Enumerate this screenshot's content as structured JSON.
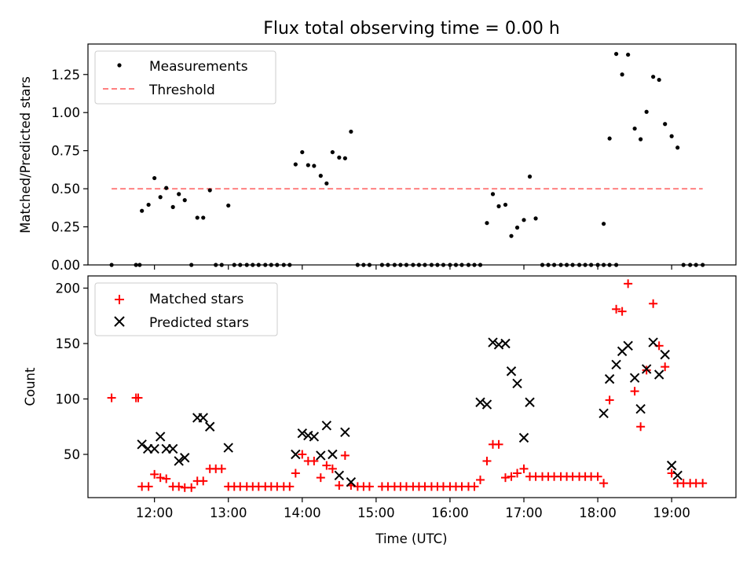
{
  "figure_title": "Flux total observing time = 0.00 h",
  "chart_data": [
    {
      "type": "scatter",
      "panel": "top",
      "ylabel": "Matched/Predicted stars",
      "xlim": [
        11.1,
        19.87
      ],
      "ylim": [
        0,
        1.45
      ],
      "yticks": [
        0,
        0.25,
        0.5,
        0.75,
        1.0,
        1.25
      ],
      "ytick_labels": [
        "0.00",
        "0.25",
        "0.50",
        "0.75",
        "1.00",
        "1.25"
      ],
      "legend_position": "upper-left",
      "threshold": {
        "name": "Threshold",
        "value": 0.5,
        "x_start": 11.42,
        "x_end": 19.42,
        "color": "#ff8080",
        "style": "dashed"
      },
      "series": [
        {
          "name": "Measurements",
          "color": "#000000",
          "marker": "dot",
          "points": [
            [
              11.42,
              0
            ],
            [
              11.75,
              0
            ],
            [
              11.8,
              0
            ],
            [
              11.83,
              0.355
            ],
            [
              11.92,
              0.395
            ],
            [
              12.0,
              0.57
            ],
            [
              12.08,
              0.445
            ],
            [
              12.16,
              0.505
            ],
            [
              12.25,
              0.38
            ],
            [
              12.33,
              0.465
            ],
            [
              12.41,
              0.425
            ],
            [
              12.5,
              0
            ],
            [
              12.58,
              0.31
            ],
            [
              12.66,
              0.31
            ],
            [
              12.75,
              0.49
            ],
            [
              12.83,
              0
            ],
            [
              12.91,
              0
            ],
            [
              13.0,
              0.39
            ],
            [
              13.08,
              0
            ],
            [
              13.16,
              0
            ],
            [
              13.25,
              0
            ],
            [
              13.33,
              0
            ],
            [
              13.41,
              0
            ],
            [
              13.5,
              0
            ],
            [
              13.58,
              0
            ],
            [
              13.66,
              0
            ],
            [
              13.75,
              0
            ],
            [
              13.83,
              0
            ],
            [
              13.91,
              0.66
            ],
            [
              14.0,
              0.74
            ],
            [
              14.08,
              0.655
            ],
            [
              14.16,
              0.65
            ],
            [
              14.25,
              0.585
            ],
            [
              14.33,
              0.535
            ],
            [
              14.41,
              0.74
            ],
            [
              14.5,
              0.705
            ],
            [
              14.58,
              0.7
            ],
            [
              14.66,
              0.875
            ],
            [
              14.75,
              0
            ],
            [
              14.83,
              0
            ],
            [
              14.91,
              0
            ],
            [
              15.08,
              0
            ],
            [
              15.16,
              0
            ],
            [
              15.25,
              0
            ],
            [
              15.33,
              0
            ],
            [
              15.41,
              0
            ],
            [
              15.5,
              0
            ],
            [
              15.58,
              0
            ],
            [
              15.66,
              0
            ],
            [
              15.75,
              0
            ],
            [
              15.83,
              0
            ],
            [
              15.91,
              0
            ],
            [
              16.0,
              0
            ],
            [
              16.08,
              0
            ],
            [
              16.16,
              0
            ],
            [
              16.25,
              0
            ],
            [
              16.33,
              0
            ],
            [
              16.41,
              0
            ],
            [
              16.5,
              0.275
            ],
            [
              16.58,
              0.465
            ],
            [
              16.66,
              0.385
            ],
            [
              16.75,
              0.395
            ],
            [
              16.83,
              0.19
            ],
            [
              16.91,
              0.245
            ],
            [
              17.0,
              0.295
            ],
            [
              17.08,
              0.58
            ],
            [
              17.16,
              0.305
            ],
            [
              17.25,
              0
            ],
            [
              17.33,
              0
            ],
            [
              17.41,
              0
            ],
            [
              17.5,
              0
            ],
            [
              17.58,
              0
            ],
            [
              17.66,
              0
            ],
            [
              17.75,
              0
            ],
            [
              17.83,
              0
            ],
            [
              17.91,
              0
            ],
            [
              18.0,
              0
            ],
            [
              18.08,
              0
            ],
            [
              18.16,
              0
            ],
            [
              18.25,
              0
            ],
            [
              18.08,
              0.27
            ],
            [
              18.16,
              0.83
            ],
            [
              18.25,
              1.385
            ],
            [
              18.33,
              1.25
            ],
            [
              18.41,
              1.38
            ],
            [
              18.5,
              0.895
            ],
            [
              18.58,
              0.825
            ],
            [
              18.66,
              1.005
            ],
            [
              18.75,
              1.235
            ],
            [
              18.83,
              1.215
            ],
            [
              18.91,
              0.925
            ],
            [
              19.0,
              0.845
            ],
            [
              19.08,
              0.77
            ],
            [
              19.16,
              0
            ],
            [
              19.25,
              0
            ],
            [
              19.33,
              0
            ],
            [
              19.42,
              0
            ]
          ]
        }
      ]
    },
    {
      "type": "scatter",
      "panel": "bottom",
      "xlabel": "Time (UTC)",
      "ylabel": "Count",
      "xlim": [
        11.1,
        19.87
      ],
      "ylim": [
        11,
        211
      ],
      "xticks": [
        12,
        13,
        14,
        15,
        16,
        17,
        18,
        19
      ],
      "xtick_labels": [
        "12:00",
        "13:00",
        "14:00",
        "15:00",
        "16:00",
        "17:00",
        "18:00",
        "19:00"
      ],
      "yticks": [
        50,
        100,
        150,
        200
      ],
      "ytick_labels": [
        "50",
        "100",
        "150",
        "200"
      ],
      "legend_position": "upper-left",
      "series": [
        {
          "name": "Matched stars",
          "color": "#ff0000",
          "marker": "plus",
          "points": [
            [
              11.42,
              101
            ],
            [
              11.75,
              101
            ],
            [
              11.78,
              101
            ],
            [
              11.83,
              21
            ],
            [
              11.92,
              21
            ],
            [
              12.0,
              32
            ],
            [
              12.08,
              29
            ],
            [
              12.16,
              28
            ],
            [
              12.25,
              21
            ],
            [
              12.33,
              21
            ],
            [
              12.41,
              20
            ],
            [
              12.5,
              20
            ],
            [
              12.58,
              26
            ],
            [
              12.66,
              26
            ],
            [
              12.75,
              37
            ],
            [
              12.83,
              37
            ],
            [
              12.91,
              37
            ],
            [
              13.0,
              21
            ],
            [
              13.08,
              21
            ],
            [
              13.16,
              21
            ],
            [
              13.25,
              21
            ],
            [
              13.33,
              21
            ],
            [
              13.41,
              21
            ],
            [
              13.5,
              21
            ],
            [
              13.58,
              21
            ],
            [
              13.66,
              21
            ],
            [
              13.75,
              21
            ],
            [
              13.83,
              21
            ],
            [
              13.91,
              33
            ],
            [
              14.0,
              50
            ],
            [
              14.08,
              44
            ],
            [
              14.16,
              44
            ],
            [
              14.25,
              29
            ],
            [
              14.33,
              40
            ],
            [
              14.41,
              37
            ],
            [
              14.5,
              22
            ],
            [
              14.58,
              49
            ],
            [
              14.66,
              22
            ],
            [
              14.75,
              21
            ],
            [
              14.83,
              21
            ],
            [
              14.91,
              21
            ],
            [
              15.08,
              21
            ],
            [
              15.16,
              21
            ],
            [
              15.25,
              21
            ],
            [
              15.33,
              21
            ],
            [
              15.41,
              21
            ],
            [
              15.5,
              21
            ],
            [
              15.58,
              21
            ],
            [
              15.66,
              21
            ],
            [
              15.75,
              21
            ],
            [
              15.83,
              21
            ],
            [
              15.91,
              21
            ],
            [
              16.0,
              21
            ],
            [
              16.08,
              21
            ],
            [
              16.16,
              21
            ],
            [
              16.25,
              21
            ],
            [
              16.33,
              21
            ],
            [
              16.41,
              27
            ],
            [
              16.5,
              44
            ],
            [
              16.58,
              59
            ],
            [
              16.66,
              59
            ],
            [
              16.75,
              29
            ],
            [
              16.83,
              30
            ],
            [
              16.91,
              33
            ],
            [
              17.0,
              37
            ],
            [
              17.08,
              30
            ],
            [
              17.16,
              30
            ],
            [
              17.25,
              30
            ],
            [
              17.33,
              30
            ],
            [
              17.41,
              30
            ],
            [
              17.5,
              30
            ],
            [
              17.58,
              30
            ],
            [
              17.66,
              30
            ],
            [
              17.75,
              30
            ],
            [
              17.83,
              30
            ],
            [
              17.91,
              30
            ],
            [
              18.0,
              30
            ],
            [
              18.08,
              24
            ],
            [
              18.16,
              99
            ],
            [
              18.25,
              181
            ],
            [
              18.33,
              179
            ],
            [
              18.41,
              204
            ],
            [
              18.5,
              107
            ],
            [
              18.58,
              75
            ],
            [
              18.66,
              126
            ],
            [
              18.75,
              186
            ],
            [
              18.83,
              148
            ],
            [
              18.91,
              129
            ],
            [
              19.0,
              33
            ],
            [
              19.08,
              24
            ],
            [
              19.16,
              24
            ],
            [
              19.25,
              24
            ],
            [
              19.33,
              24
            ],
            [
              19.42,
              24
            ]
          ]
        },
        {
          "name": "Predicted stars",
          "color": "#000000",
          "marker": "x",
          "points": [
            [
              11.83,
              59
            ],
            [
              11.91,
              55
            ],
            [
              12.0,
              55
            ],
            [
              12.08,
              66
            ],
            [
              12.16,
              55
            ],
            [
              12.25,
              55
            ],
            [
              12.33,
              44
            ],
            [
              12.41,
              47
            ],
            [
              12.58,
              83
            ],
            [
              12.66,
              83
            ],
            [
              12.75,
              75
            ],
            [
              13.0,
              56
            ],
            [
              13.91,
              50
            ],
            [
              14.0,
              69
            ],
            [
              14.08,
              67
            ],
            [
              14.16,
              66
            ],
            [
              14.25,
              49
            ],
            [
              14.33,
              76
            ],
            [
              14.41,
              50
            ],
            [
              14.5,
              31
            ],
            [
              14.58,
              70
            ],
            [
              14.66,
              25
            ],
            [
              16.41,
              97
            ],
            [
              16.5,
              95
            ],
            [
              16.58,
              151
            ],
            [
              16.66,
              149
            ],
            [
              16.75,
              150
            ],
            [
              16.83,
              125
            ],
            [
              16.91,
              114
            ],
            [
              17.0,
              65
            ],
            [
              17.08,
              97
            ],
            [
              18.08,
              87
            ],
            [
              18.16,
              118
            ],
            [
              18.25,
              131
            ],
            [
              18.33,
              143
            ],
            [
              18.41,
              148
            ],
            [
              18.5,
              119
            ],
            [
              18.58,
              91
            ],
            [
              18.66,
              127
            ],
            [
              18.75,
              151
            ],
            [
              18.83,
              122
            ],
            [
              18.91,
              140
            ],
            [
              19.0,
              40
            ],
            [
              19.08,
              31
            ]
          ]
        }
      ]
    }
  ]
}
